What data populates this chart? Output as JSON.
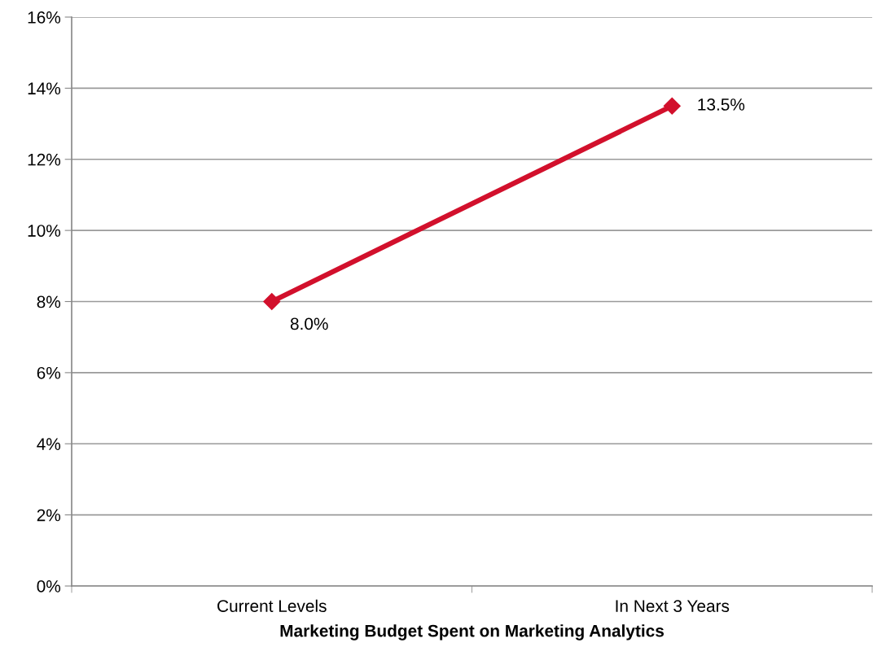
{
  "chart_data": {
    "type": "line",
    "xlabel": "Marketing Budget Spent on Marketing Analytics",
    "categories": [
      "Current Levels",
      "In Next 3 Years"
    ],
    "series": [
      {
        "color": "#d2102c",
        "values": [
          8.0,
          13.5
        ],
        "value_labels": [
          "8.0%",
          "13.5%"
        ]
      }
    ],
    "ylim": [
      0,
      16
    ],
    "yticks": [
      {
        "value": 0,
        "label": "0%"
      },
      {
        "value": 2,
        "label": "2%"
      },
      {
        "value": 4,
        "label": "4%"
      },
      {
        "value": 6,
        "label": "6%"
      },
      {
        "value": 8,
        "label": "8%"
      },
      {
        "value": 10,
        "label": "10%"
      },
      {
        "value": 12,
        "label": "12%"
      },
      {
        "value": 14,
        "label": "14%"
      },
      {
        "value": 16,
        "label": "16%"
      }
    ],
    "grid": "y",
    "marker": "diamond",
    "line_style": "solid",
    "legend": false
  }
}
